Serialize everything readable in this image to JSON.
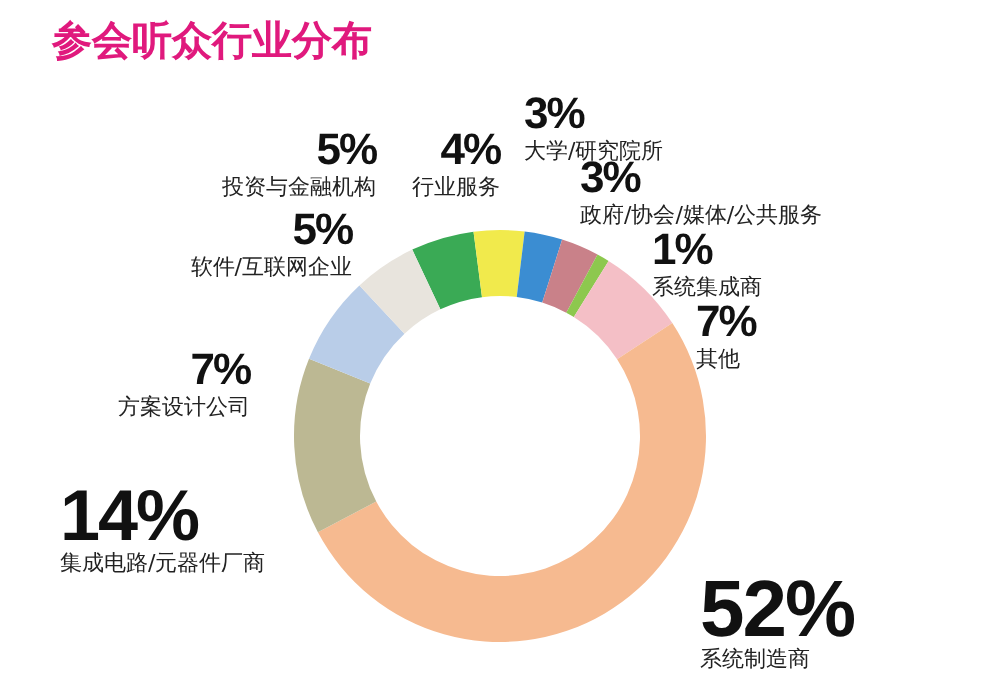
{
  "chart_data": {
    "type": "donut",
    "title": "参会听众行业分布",
    "categories": [
      "投资与金融机构",
      "行业服务",
      "大学/研究院所",
      "政府/协会/媒体/公共服务",
      "系统集成商",
      "其他",
      "系统制造商",
      "集成电路/元器件厂商",
      "方案设计公司",
      "软件/互联网企业"
    ],
    "values": [
      5,
      4,
      3,
      3,
      1,
      7,
      52,
      14,
      7,
      5
    ],
    "value_labels": [
      "5%",
      "4%",
      "3%",
      "3%",
      "1%",
      "7%",
      "52%",
      "14%",
      "7%",
      "5%"
    ],
    "colors": [
      "#3aaa55",
      "#f1ea4c",
      "#3b8dd2",
      "#c98189",
      "#8dc84e",
      "#f4bfc6",
      "#f6ba90",
      "#bcb893",
      "#b9cde8",
      "#e8e4dd"
    ]
  }
}
